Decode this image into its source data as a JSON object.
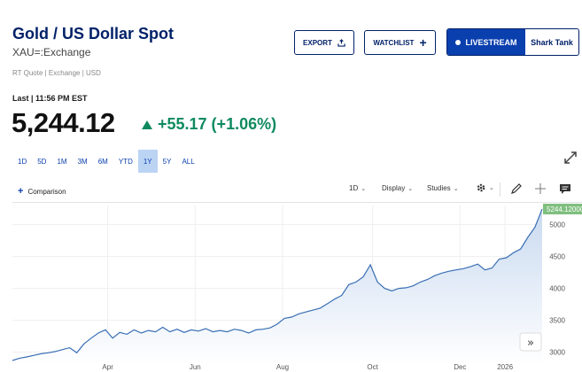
{
  "header": {
    "title": "Gold / US Dollar Spot",
    "symbol": "XAU=:Exchange",
    "quote_meta": "RT Quote | Exchange | USD"
  },
  "actions": {
    "export_label": "EXPORT",
    "watchlist_label": "WATCHLIST",
    "livestream_label": "LIVESTREAM",
    "show_label": "Shark Tank"
  },
  "quote": {
    "last_label": "Last | 11:56 PM EST",
    "price": "5,244.12",
    "change": "+55.17 (+1.06%)"
  },
  "ranges": [
    {
      "label": "1D",
      "active": false
    },
    {
      "label": "5D",
      "active": false
    },
    {
      "label": "1M",
      "active": false
    },
    {
      "label": "3M",
      "active": false
    },
    {
      "label": "6M",
      "active": false
    },
    {
      "label": "YTD",
      "active": false
    },
    {
      "label": "1Y",
      "active": true
    },
    {
      "label": "5Y",
      "active": false
    },
    {
      "label": "ALL",
      "active": false
    }
  ],
  "toolbar": {
    "comparison_label": "Comparison",
    "interval_label": "1D",
    "display_label": "Display",
    "studies_label": "Studies"
  },
  "colors": {
    "brand": "#012169",
    "accent": "#0a3fae",
    "positive": "#0f8a5f",
    "line": "#3a6fb4",
    "area_top": "#c9daf0",
    "price_tag": "#7fbf7f"
  },
  "chart_data": {
    "type": "area",
    "xlabel": "",
    "ylabel": "",
    "x_ticks": [
      "Apr",
      "Jun",
      "Aug",
      "Oct",
      "Dec",
      "2026"
    ],
    "y_ticks": [
      3000,
      3500,
      4000,
      4500,
      5000
    ],
    "ylim": [
      2800,
      5300
    ],
    "last_value_label": "5244.12000",
    "series": [
      {
        "values": [
          2870,
          2905,
          2925,
          2950,
          2975,
          2990,
          3010,
          3040,
          3070,
          2990,
          3130,
          3220,
          3300,
          3350,
          3220,
          3310,
          3280,
          3350,
          3300,
          3340,
          3320,
          3390,
          3320,
          3360,
          3310,
          3350,
          3330,
          3370,
          3320,
          3340,
          3320,
          3360,
          3340,
          3300,
          3350,
          3360,
          3380,
          3440,
          3530,
          3550,
          3600,
          3630,
          3660,
          3690,
          3760,
          3830,
          3890,
          4060,
          4100,
          4180,
          4370,
          4100,
          4000,
          3960,
          4000,
          4010,
          4040,
          4100,
          4140,
          4200,
          4240,
          4270,
          4290,
          4310,
          4340,
          4380,
          4290,
          4320,
          4460,
          4480,
          4560,
          4620,
          4800,
          4960,
          5244
        ]
      }
    ]
  }
}
